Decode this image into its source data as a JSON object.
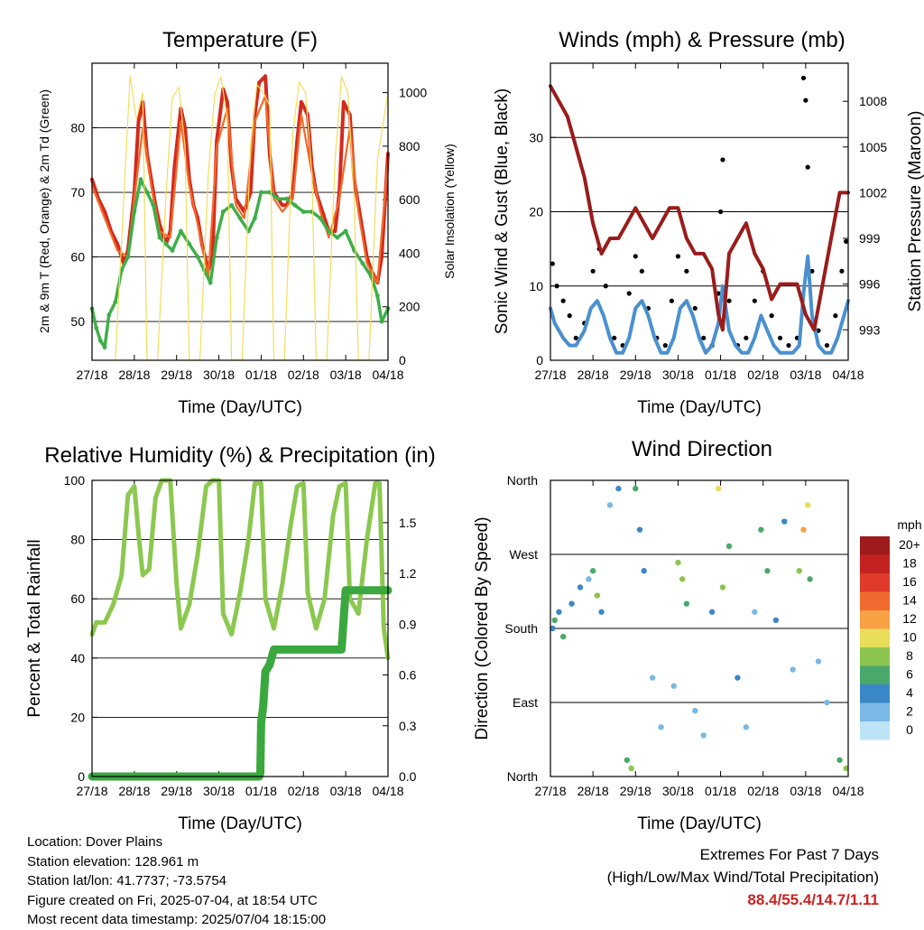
{
  "chart_data": [
    {
      "type": "line",
      "title": "Temperature (F)",
      "xlabel": "Time (Day/UTC)",
      "ylabel": "2m & 9m T (Red, Orange) & 2m Td (Green)",
      "y2label": "Solar Insolation (Yellow)",
      "x_ticks": [
        "27/18",
        "28/18",
        "29/18",
        "30/18",
        "01/18",
        "02/18",
        "03/18",
        "04/18"
      ],
      "ylim": [
        44,
        90
      ],
      "y_ticks": [
        50,
        60,
        70,
        80
      ],
      "y2lim": [
        0,
        1110
      ],
      "y2_ticks": [
        0,
        200,
        400,
        600,
        800,
        1000
      ],
      "grid": true,
      "series": [
        {
          "name": "2m T",
          "color": "#d42a1e",
          "axis": "left",
          "x": [
            0,
            0.15,
            0.3,
            0.45,
            0.6,
            0.75,
            0.85,
            1.0,
            1.1,
            1.2,
            1.3,
            1.4,
            1.5,
            1.6,
            1.75,
            1.85,
            1.95,
            2.1,
            2.2,
            2.3,
            2.4,
            2.5,
            2.6,
            2.75,
            2.85,
            2.95,
            3.1,
            3.2,
            3.3,
            3.4,
            3.5,
            3.6,
            3.75,
            3.85,
            3.95,
            4.1,
            4.2,
            4.3,
            4.4,
            4.5,
            4.6,
            4.75,
            4.85,
            4.95,
            5.1,
            5.2,
            5.3,
            5.4,
            5.5,
            5.6,
            5.75,
            5.85,
            5.95,
            6.1,
            6.2,
            6.3,
            6.4,
            6.5,
            6.6,
            6.75,
            6.85,
            7.0
          ],
          "values": [
            72,
            69,
            67,
            64,
            62,
            59,
            61,
            70,
            81,
            84,
            76,
            72,
            68,
            65,
            62,
            64,
            74,
            83,
            80,
            72,
            68,
            66,
            62,
            58,
            60,
            78,
            86,
            84,
            74,
            69,
            68,
            67,
            70,
            82,
            87,
            88,
            76,
            70,
            69,
            68,
            68,
            70,
            78,
            84,
            82,
            74,
            70,
            68,
            66,
            64,
            64,
            70,
            84,
            82,
            72,
            68,
            64,
            60,
            58,
            56,
            60,
            76
          ]
        },
        {
          "name": "9m T",
          "color": "#f26a2a",
          "axis": "left",
          "x": [
            0,
            0.3,
            0.6,
            0.85,
            1.0,
            1.2,
            1.4,
            1.6,
            1.85,
            2.1,
            2.3,
            2.5,
            2.75,
            2.95,
            3.2,
            3.4,
            3.6,
            3.85,
            4.1,
            4.3,
            4.5,
            4.75,
            4.95,
            5.2,
            5.4,
            5.6,
            5.85,
            6.1,
            6.3,
            6.5,
            6.75,
            7.0
          ],
          "values": [
            71,
            66,
            61,
            60,
            69,
            80,
            71,
            64,
            63,
            81,
            71,
            65,
            57,
            77,
            83,
            68,
            66,
            81,
            85,
            69,
            67,
            69,
            82,
            73,
            67,
            63,
            69,
            80,
            67,
            59,
            56,
            75
          ]
        },
        {
          "name": "2m Td",
          "color": "#3fae49",
          "axis": "left",
          "x": [
            0,
            0.1,
            0.2,
            0.3,
            0.4,
            0.55,
            0.7,
            0.85,
            1.0,
            1.15,
            1.3,
            1.45,
            1.6,
            1.75,
            1.9,
            2.1,
            2.3,
            2.5,
            2.65,
            2.8,
            2.95,
            3.1,
            3.3,
            3.5,
            3.7,
            3.85,
            4.0,
            4.2,
            4.4,
            4.6,
            4.8,
            5.0,
            5.2,
            5.4,
            5.6,
            5.8,
            6.0,
            6.2,
            6.4,
            6.6,
            6.75,
            6.85,
            7.0
          ],
          "values": [
            52,
            49,
            47,
            46,
            51,
            53,
            58,
            60,
            67,
            72,
            70,
            68,
            63,
            62,
            61,
            64,
            62,
            60,
            58,
            56,
            63,
            67,
            68,
            66,
            64,
            66,
            70,
            70,
            69,
            69,
            68,
            67,
            67,
            66,
            64,
            63,
            64,
            61,
            59,
            57,
            54,
            50,
            52
          ]
        },
        {
          "name": "Solar Insolation",
          "color": "#f5dc5a",
          "axis": "right",
          "x": [
            0.55,
            0.75,
            0.9,
            1.05,
            1.2,
            1.3,
            1.55,
            1.75,
            1.9,
            2.05,
            2.2,
            2.3,
            2.55,
            2.75,
            2.9,
            3.05,
            3.2,
            3.3,
            3.55,
            3.75,
            3.9,
            4.05,
            4.2,
            4.3,
            4.55,
            4.75,
            4.9,
            5.05,
            5.2,
            5.3,
            5.55,
            5.75,
            5.9,
            6.05,
            6.2,
            6.3,
            6.55,
            6.75,
            6.9,
            7.0
          ],
          "values": [
            0,
            600,
            1060,
            900,
            1000,
            0,
            0,
            620,
            980,
            1020,
            800,
            0,
            0,
            700,
            990,
            1060,
            900,
            0,
            0,
            800,
            1030,
            1000,
            950,
            0,
            0,
            850,
            1040,
            1000,
            700,
            0,
            0,
            750,
            1060,
            1000,
            600,
            0,
            0,
            750,
            900,
            1000
          ]
        }
      ]
    },
    {
      "type": "scatter",
      "title": "Winds (mph) & Pressure (mb)",
      "xlabel": "Time (Day/UTC)",
      "ylabel": "Sonic Wind & Gust (Blue, Black)",
      "y2label": "Station Pressure (Maroon)",
      "x_ticks": [
        "27/18",
        "28/18",
        "29/18",
        "30/18",
        "01/18",
        "02/18",
        "03/18",
        "04/18"
      ],
      "ylim": [
        0,
        40
      ],
      "y_ticks": [
        0,
        10,
        20,
        30
      ],
      "y2lim": [
        991,
        1010.5
      ],
      "y2_ticks": [
        993,
        996,
        999,
        1002,
        1005,
        1008
      ],
      "grid": true,
      "series": [
        {
          "name": "Gust",
          "color": "#000000",
          "axis": "left",
          "x": [
            0.05,
            0.15,
            0.3,
            0.45,
            0.6,
            0.8,
            1.0,
            1.15,
            1.3,
            1.5,
            1.7,
            1.85,
            2.0,
            2.15,
            2.3,
            2.5,
            2.7,
            2.85,
            3.0,
            3.2,
            3.4,
            3.6,
            3.8,
            3.95,
            4.0,
            4.05,
            4.2,
            4.4,
            4.6,
            4.8,
            5.0,
            5.2,
            5.4,
            5.6,
            5.8,
            5.95,
            6.0,
            6.05,
            6.15,
            6.3,
            6.5,
            6.7,
            6.85,
            6.95
          ],
          "values": [
            13,
            10,
            8,
            6,
            3,
            5,
            12,
            15,
            10,
            3,
            2,
            9,
            14,
            12,
            7,
            3,
            2,
            8,
            14,
            12,
            7,
            3,
            2,
            9,
            20,
            27,
            8,
            2,
            3,
            8,
            12,
            6,
            3,
            2,
            3,
            38,
            35,
            26,
            12,
            4,
            2,
            6,
            12,
            16
          ]
        },
        {
          "name": "Wind",
          "color": "#4a90d0",
          "axis": "left",
          "x": [
            0,
            0.1,
            0.2,
            0.3,
            0.45,
            0.6,
            0.8,
            0.95,
            1.1,
            1.25,
            1.4,
            1.55,
            1.7,
            1.85,
            2.0,
            2.15,
            2.3,
            2.45,
            2.6,
            2.75,
            2.9,
            3.05,
            3.2,
            3.35,
            3.5,
            3.65,
            3.8,
            3.95,
            4.05,
            4.2,
            4.35,
            4.5,
            4.65,
            4.8,
            4.95,
            5.1,
            5.25,
            5.4,
            5.55,
            5.7,
            5.85,
            5.95,
            6.05,
            6.15,
            6.3,
            6.45,
            6.6,
            6.75,
            6.9,
            7.0
          ],
          "values": [
            7,
            5,
            4,
            3,
            2,
            2,
            4,
            7,
            8,
            6,
            3,
            1,
            1,
            3,
            7,
            8,
            6,
            3,
            1,
            1,
            3,
            7,
            8,
            6,
            3,
            1,
            2,
            5,
            10,
            4,
            2,
            1,
            1,
            3,
            6,
            4,
            2,
            1,
            1,
            1,
            2,
            9,
            14,
            6,
            2,
            1,
            1,
            3,
            6,
            8
          ]
        },
        {
          "name": "Station Pressure",
          "color": "#9a1c1c",
          "axis": "right",
          "x": [
            0,
            0.2,
            0.4,
            0.6,
            0.8,
            1.0,
            1.2,
            1.4,
            1.6,
            1.8,
            2.0,
            2.2,
            2.4,
            2.6,
            2.8,
            3.0,
            3.2,
            3.4,
            3.6,
            3.8,
            3.95,
            4.05,
            4.2,
            4.4,
            4.6,
            4.8,
            5.0,
            5.2,
            5.4,
            5.6,
            5.8,
            6.0,
            6.2,
            6.4,
            6.6,
            6.8,
            7.0
          ],
          "values": [
            1009,
            1008,
            1007,
            1005,
            1003,
            1000,
            998,
            999,
            999,
            1000,
            1001,
            1000,
            999,
            1000,
            1001,
            1001,
            999,
            998,
            998,
            997,
            994,
            993,
            998,
            999,
            1000,
            998,
            997,
            995,
            996,
            996,
            996,
            994,
            993,
            996,
            999,
            1002,
            1002
          ]
        }
      ]
    },
    {
      "type": "line",
      "title": "Relative Humidity (%) & Precipitation (in)",
      "xlabel": "Time (Day/UTC)",
      "ylabel": "Percent & Total Rainfall",
      "x_ticks": [
        "27/18",
        "28/18",
        "29/18",
        "30/18",
        "01/18",
        "02/18",
        "03/18",
        "04/18"
      ],
      "ylim": [
        0,
        100
      ],
      "y_ticks": [
        0,
        20,
        40,
        60,
        80,
        100
      ],
      "y2lim": [
        0,
        1.75
      ],
      "y2_ticks": [
        0.0,
        0.3,
        0.6,
        0.9,
        1.2,
        1.5
      ],
      "grid": true,
      "series": [
        {
          "name": "Relative Humidity",
          "color": "#8cc850",
          "axis": "left",
          "x": [
            0,
            0.1,
            0.3,
            0.5,
            0.7,
            0.85,
            1.0,
            1.1,
            1.2,
            1.35,
            1.5,
            1.65,
            1.85,
            2.0,
            2.1,
            2.3,
            2.5,
            2.7,
            2.85,
            3.0,
            3.1,
            3.3,
            3.5,
            3.7,
            3.85,
            4.0,
            4.1,
            4.3,
            4.5,
            4.7,
            4.85,
            5.0,
            5.1,
            5.3,
            5.5,
            5.7,
            5.85,
            6.0,
            6.1,
            6.3,
            6.5,
            6.7,
            6.8,
            6.9,
            7.0
          ],
          "values": [
            48,
            52,
            52,
            58,
            68,
            95,
            98,
            82,
            68,
            70,
            94,
            100,
            100,
            65,
            50,
            58,
            75,
            98,
            100,
            100,
            55,
            48,
            62,
            80,
            99,
            99,
            60,
            50,
            65,
            85,
            98,
            99,
            62,
            50,
            60,
            88,
            98,
            99,
            60,
            55,
            80,
            99,
            99,
            50,
            40
          ]
        },
        {
          "name": "Total Rainfall",
          "color": "#3aa83f",
          "axis": "right",
          "x": [
            0,
            1,
            2,
            3,
            3.95,
            3.98,
            4.0,
            4.05,
            4.1,
            4.2,
            4.3,
            4.5,
            5,
            5.6,
            5.75,
            5.8,
            5.9,
            6.0,
            6.5,
            7.0
          ],
          "values": [
            0,
            0,
            0,
            0,
            0,
            0.02,
            0.32,
            0.42,
            0.62,
            0.66,
            0.75,
            0.75,
            0.75,
            0.75,
            0.75,
            0.75,
            0.75,
            1.1,
            1.1,
            1.1
          ]
        }
      ]
    },
    {
      "type": "scatter",
      "title": "Wind Direction",
      "xlabel": "Time (Day/UTC)",
      "ylabel": "Direction (Colored By Speed)",
      "x_ticks": [
        "27/18",
        "28/18",
        "29/18",
        "30/18",
        "01/18",
        "02/18",
        "03/18",
        "04/18"
      ],
      "y_ticks": [
        "North",
        "East",
        "South",
        "West",
        "North"
      ],
      "ylim": [
        0,
        360
      ],
      "grid": true,
      "colorbar": {
        "title": "mph",
        "labels": [
          "20+",
          "18",
          "16",
          "14",
          "12",
          "10",
          "8",
          "6",
          "4",
          "2",
          "0"
        ],
        "colors": [
          "#9e1b1b",
          "#c42222",
          "#e03a2a",
          "#f06a30",
          "#f8a044",
          "#e8de5a",
          "#8cc450",
          "#4aa86a",
          "#3a88c8",
          "#7ab8e6",
          "#bde3f6"
        ]
      },
      "series": [
        {
          "name": "direction",
          "x": [
            0.05,
            0.1,
            0.2,
            0.3,
            0.5,
            0.7,
            0.9,
            1.0,
            1.1,
            1.2,
            1.4,
            1.6,
            1.8,
            1.9,
            2.0,
            2.1,
            2.2,
            2.4,
            2.6,
            2.9,
            3.0,
            3.1,
            3.2,
            3.4,
            3.6,
            3.8,
            3.95,
            4.05,
            4.2,
            4.4,
            4.6,
            4.8,
            4.95,
            5.1,
            5.3,
            5.5,
            5.7,
            5.85,
            5.95,
            6.05,
            6.1,
            6.3,
            6.5,
            6.8,
            6.95
          ],
          "values": [
            180,
            190,
            200,
            170,
            210,
            230,
            240,
            250,
            220,
            200,
            330,
            350,
            20,
            10,
            350,
            300,
            250,
            120,
            60,
            110,
            260,
            240,
            210,
            80,
            50,
            200,
            350,
            230,
            280,
            120,
            60,
            200,
            300,
            250,
            190,
            310,
            130,
            250,
            300,
            330,
            240,
            140,
            90,
            20,
            10
          ],
          "speeds": [
            4,
            6,
            3,
            5,
            4,
            3,
            2,
            6,
            7,
            4,
            2,
            3,
            6,
            7,
            5,
            4,
            3,
            2,
            1,
            2,
            7,
            8,
            5,
            2,
            1,
            3,
            10,
            8,
            5,
            3,
            1,
            2,
            5,
            6,
            3,
            4,
            2,
            7,
            12,
            10,
            6,
            2,
            1,
            5,
            8
          ]
        }
      ]
    }
  ],
  "info": {
    "location": "Location: Dover Plains",
    "elevation": "Station elevation: 128.961 m",
    "latlon": "Station lat/lon: 41.7737; -73.5754",
    "created": "Figure created on Fri, 2025-07-04, at 18:54 UTC",
    "timestamp": "Most recent data timestamp: 2025/07/04 18:15:00"
  },
  "extremes": {
    "title": "Extremes For Past 7 Days",
    "subtitle": "(High/Low/Max Wind/Total Precipitation)",
    "values": "88.4/55.4/14.7/1.11"
  }
}
